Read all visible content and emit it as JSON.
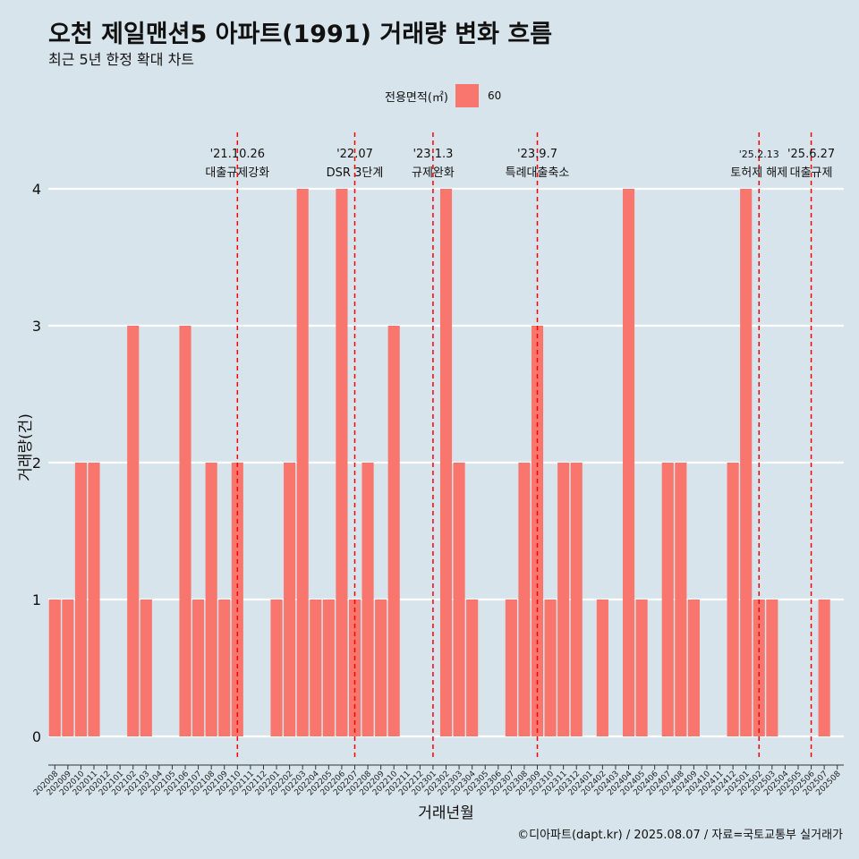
{
  "title": "오천 제일맨션5 아파트(1991) 거래량 변화 흐름",
  "subtitle": "최근 5년 한정 확대 차트",
  "caption": "©디아파트(dapt.kr) / 2025.08.07 / 자료=국토교통부 실거래가",
  "legend": {
    "title": "전용면적(㎡)",
    "items": [
      {
        "label": "60",
        "color": "#f8766d"
      }
    ]
  },
  "chart_data": {
    "type": "bar",
    "xlabel": "거래년월",
    "ylabel": "거래량(건)",
    "ylim": [
      0,
      4
    ],
    "yticks": [
      0,
      1,
      2,
      3,
      4
    ],
    "grid": true,
    "legend_position": "top",
    "categories": [
      "202008",
      "202009",
      "202010",
      "202011",
      "202012",
      "202101",
      "202102",
      "202103",
      "202104",
      "202105",
      "202106",
      "202107",
      "202108",
      "202109",
      "202110",
      "202111",
      "202112",
      "202201",
      "202202",
      "202203",
      "202204",
      "202205",
      "202206",
      "202207",
      "202208",
      "202209",
      "202210",
      "202211",
      "202212",
      "202301",
      "202302",
      "202303",
      "202304",
      "202305",
      "202306",
      "202307",
      "202308",
      "202309",
      "202310",
      "202311",
      "202312",
      "202401",
      "202402",
      "202403",
      "202404",
      "202405",
      "202406",
      "202407",
      "202408",
      "202409",
      "202410",
      "202411",
      "202412",
      "202501",
      "202502",
      "202503",
      "202504",
      "202505",
      "202506",
      "202507",
      "202508"
    ],
    "series": [
      {
        "name": "60",
        "color": "#f8766d",
        "values": [
          1,
          1,
          2,
          2,
          0,
          0,
          3,
          1,
          0,
          0,
          3,
          1,
          2,
          1,
          2,
          0,
          0,
          1,
          2,
          4,
          1,
          1,
          4,
          1,
          2,
          1,
          3,
          0,
          0,
          0,
          4,
          2,
          1,
          0,
          0,
          1,
          2,
          3,
          1,
          2,
          2,
          0,
          1,
          0,
          4,
          1,
          0,
          2,
          2,
          1,
          0,
          0,
          2,
          4,
          1,
          1,
          0,
          0,
          0,
          1,
          0
        ]
      }
    ],
    "annotations": [
      {
        "x": "202110",
        "date": "'21.10.26",
        "label": "대출규제강화"
      },
      {
        "x": "202207",
        "date": "'22.07",
        "label": "DSR 3단계"
      },
      {
        "x": "202301",
        "date": "'23.1.3",
        "label": "규제완화"
      },
      {
        "x": "202309",
        "date": "'23.9.7",
        "label": "특례대출축소"
      },
      {
        "x": "202502",
        "date": "'25.2.13",
        "label": "토허제 해제"
      },
      {
        "x": "202506",
        "date": "'25.6.27",
        "label": "대출규제"
      }
    ],
    "annotation_color": "#ff0000"
  }
}
